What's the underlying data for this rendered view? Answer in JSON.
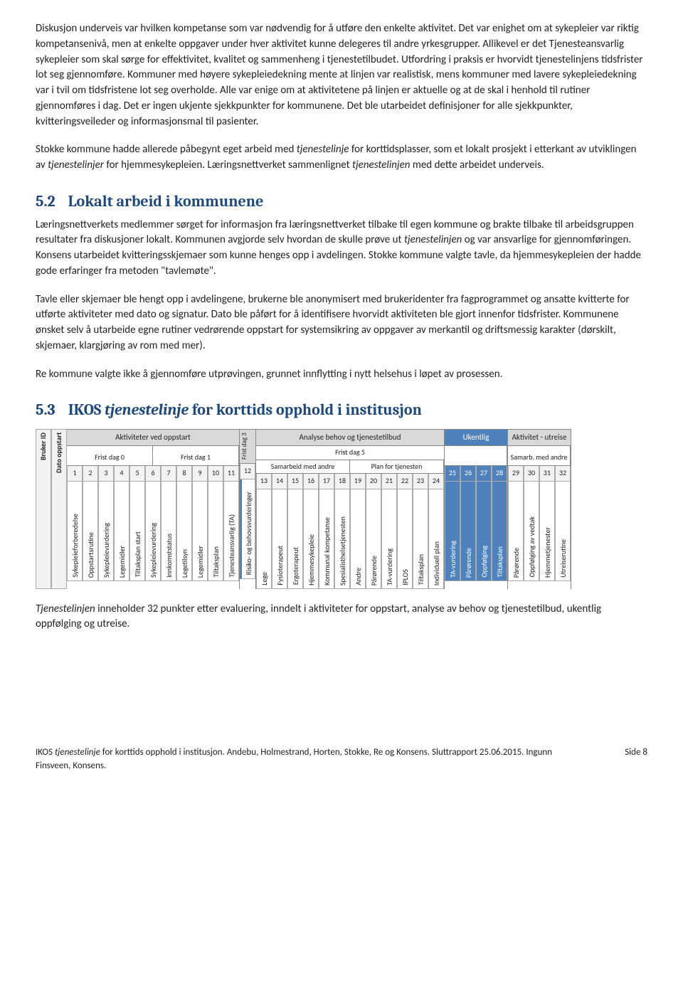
{
  "p1": "Diskusjon underveis var hvilken kompetanse som var nødvendig for å utføre den enkelte aktivitet. Det var enighet om at sykepleier var riktig kompetansenivå, men at enkelte oppgaver under hver aktivitet kunne delegeres til andre yrkesgrupper. Allikevel er det Tjenesteansvarlig sykepleier som skal sørge for effektivitet, kvalitet og sammenheng i tjenestetilbudet. Utfordring i praksis er hvorvidt tjenestelinjens tidsfrister lot seg gjennomføre. Kommuner med høyere sykepleiedekning mente at linjen var realistisk, mens kommuner med lavere sykepleiedekning var i tvil om tidsfristene lot seg overholde. Alle var enige om at aktivitetene på linjen er aktuelle og at de skal i henhold til rutiner gjennomføres i dag. Det er ingen ukjente sjekkpunkter for kommunene. Det ble utarbeidet definisjoner for alle sjekkpunkter, kvitteringsveileder og informasjonsmal til pasienter.",
  "p2a": "Stokke kommune hadde allerede påbegynt eget arbeid med ",
  "p2b": " for korttidsplasser, som et lokalt prosjekt i etterkant av utviklingen av ",
  "p2c": " for hjemmesykepleien. Læringsnettverket sammenlignet ",
  "p2d": " med dette arbeidet underveis.",
  "h52_num": "5.2",
  "h52_title": "Lokalt arbeid i kommunene",
  "p3a": "Læringsnettverkets medlemmer sørget for informasjon fra læringsnettverket tilbake til egen kommune og brakte tilbake til arbeidsgruppen resultater fra diskusjoner lokalt. Kommunen avgjorde selv hvordan de skulle prøve ut ",
  "p3b": " og var ansvarlige for gjennomføringen. Konsens utarbeidet kvitteringsskjemaer som kunne henges opp i avdelingen. Stokke kommune valgte tavle, da hjemmesykepleien der hadde gode erfaringer fra metoden \"tavlemøte\".",
  "p4": "Tavle eller skjemaer ble hengt opp i avdelingene, brukerne ble anonymisert med brukeridenter fra fagprogrammet og ansatte kvitterte for utførte aktiviteter med dato og signatur. Dato ble påført for å identifisere hvorvidt aktiviteten ble gjort innenfor tidsfrister. Kommunene ønsket selv å utarbeide egne rutiner vedrørende oppstart for systemsikring av oppgaver av merkantil og driftsmessig karakter (dørskilt, skjemaer, klargjøring av rom med mer).",
  "p5": "Re kommune valgte ikke å gjennomføre utprøvingen, grunnet innflytting i nytt helsehus i løpet av prosessen.",
  "h53_num": "5.3",
  "h53_title_a": "IKOS ",
  "h53_title_b": " for korttids opphold i institusjon",
  "tjenestelinje": "tjenestelinje",
  "tjenestelinjer": "tjenestelinjer",
  "tjenestelinjen": "tjenestelinjen",
  "Tjenestelinjen": "Tjenestelinjen",
  "p6a": " inneholder 32 punkter etter evaluering, inndelt i aktiviteter for oppstart, analyse av behov og tjenestetilbud, ukentlig oppfølging og utreise.",
  "footer_a": "IKOS ",
  "footer_b": " for korttids opphold i institusjon. Andebu, Holmestrand, Horten, Stokke, Re og Konsens. Sluttrapport 25.06.2015. Ingunn Finsveen, Konsens.",
  "footer_page": "Side 8",
  "chart": {
    "pre": [
      {
        "label": "Bruker ID",
        "bg": "#f2f2f2"
      },
      {
        "label": "Dato oppstart",
        "bg": "#f2f2f2"
      }
    ],
    "sections": [
      {
        "header": "Aktiviteter ved oppstart",
        "bg": "#d9d9d9",
        "subs": [
          {
            "label": "Frist dag 0",
            "cols": [
              {
                "n": "1",
                "label": "Sykepleieforberedelse"
              },
              {
                "n": "2",
                "label": "Oppstartsrutine"
              },
              {
                "n": "3",
                "label": "Sykepleievurdering"
              },
              {
                "n": "4",
                "label": "Legemidler"
              },
              {
                "n": "5",
                "label": "Tiltaksplan start"
              }
            ]
          },
          {
            "label": "Frist dag 1",
            "cols": [
              {
                "n": "6",
                "label": "Sykepleievurdering"
              },
              {
                "n": "7",
                "label": "Innkomststatus"
              },
              {
                "n": "8",
                "label": "Legetilsyn"
              },
              {
                "n": "9",
                "label": "Legemidler"
              },
              {
                "n": "10",
                "label": "Tiltaksplan"
              },
              {
                "n": "11",
                "label": "Tjenesteansvarlig (TA)"
              }
            ]
          }
        ]
      },
      {
        "header": "Frist dag 3",
        "bg": "#d9d9d9",
        "rot": true,
        "subs": [
          {
            "label": "",
            "cols": [
              {
                "n": "12",
                "label": "Risiko- og behovsvurderinger",
                "blueline": true
              }
            ]
          }
        ]
      },
      {
        "header": "Analyse behov og tjenestetilbud",
        "bg": "#d9d9d9",
        "subs": [
          {
            "label": "Frist dag 5",
            "span": 2,
            "subsubs": [
              {
                "label": "Samarbeid med andre",
                "cols": [
                  {
                    "n": "13",
                    "label": "Lege"
                  },
                  {
                    "n": "14",
                    "label": "Fysioterapeut"
                  },
                  {
                    "n": "15",
                    "label": "Ergoterapeut"
                  },
                  {
                    "n": "16",
                    "label": "Hjemmesykepleie"
                  },
                  {
                    "n": "17",
                    "label": "Kommunal kompetanse"
                  },
                  {
                    "n": "18",
                    "label": "Spesialisthelsetjenesten"
                  },
                  {
                    "n": "19",
                    "label": "Andre"
                  },
                  {
                    "n": "20",
                    "label": "Pårørende"
                  }
                ]
              },
              {
                "label": "Plan for tjenesten",
                "cols": [
                  {
                    "n": "21",
                    "label": "TA-vurdering"
                  },
                  {
                    "n": "22",
                    "label": "IPLOS"
                  },
                  {
                    "n": "23",
                    "label": "Tiltaksplan"
                  },
                  {
                    "n": "24",
                    "label": "Individuell plan"
                  }
                ]
              }
            ]
          }
        ]
      },
      {
        "header": "Ukentlig",
        "bg": "#4f81bd",
        "blue": true,
        "subs": [
          {
            "label": "",
            "cols": [
              {
                "n": "25",
                "label": "TA-vurdering",
                "blue": true
              },
              {
                "n": "26",
                "label": "Pårørende",
                "blue": true
              },
              {
                "n": "27",
                "label": "Oppfølging",
                "blue": true
              },
              {
                "n": "28",
                "label": "Tiltaksplan",
                "blue": true
              }
            ]
          }
        ]
      },
      {
        "header": "Aktivitet - utreise",
        "bg": "#d9d9d9",
        "subs": [
          {
            "label": "Samarb. med andre",
            "cols": [
              {
                "n": "29",
                "label": "Pårørende"
              },
              {
                "n": "30",
                "label": "Oppfølging av vedtak"
              },
              {
                "n": "31",
                "label": "Hjemmetjenester"
              },
              {
                "n": "32",
                "label": "Utreiserutine"
              }
            ]
          }
        ]
      }
    ]
  }
}
